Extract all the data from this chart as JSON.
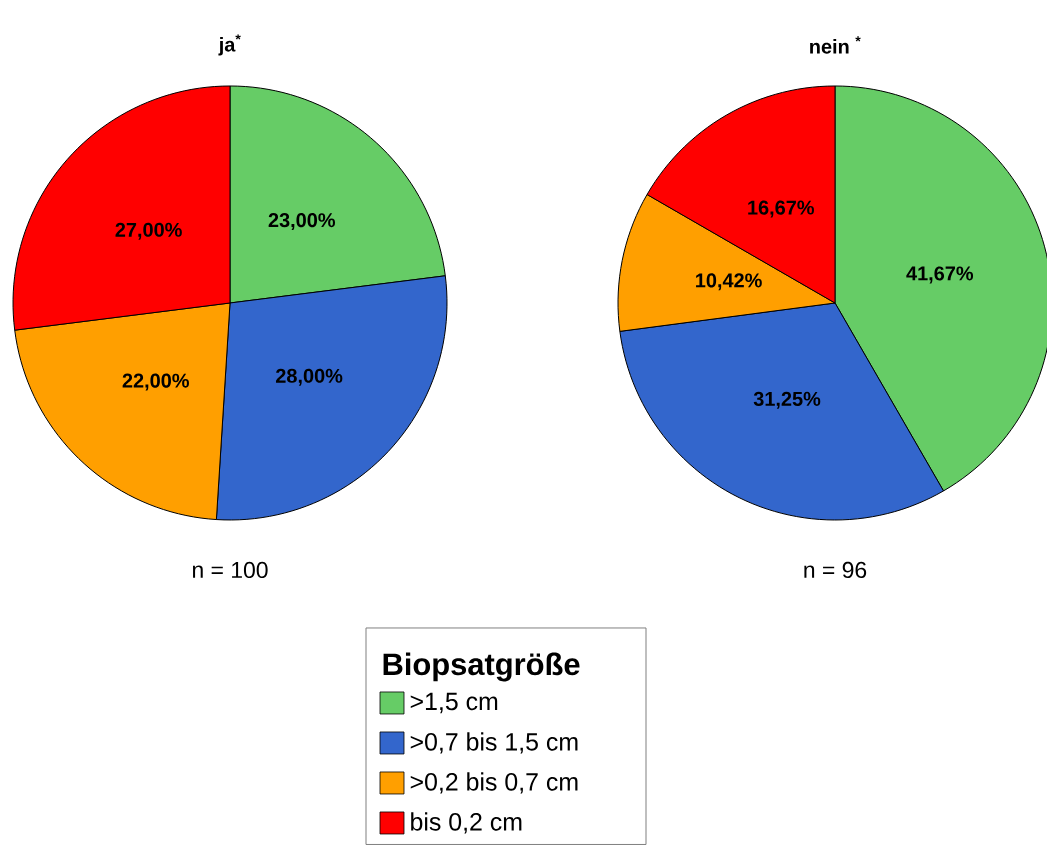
{
  "chart_data": [
    {
      "type": "pie",
      "title": "ja$^{*}$",
      "categories": [
        ">1,5 cm",
        ">0,7 bis 1,5 cm",
        ">0,2 bis 0,7 cm",
        "bis 0,2 cm"
      ],
      "values": [
        23,
        28,
        22,
        27
      ],
      "value_labels": [
        "23,00%",
        "28,00%",
        "22,00%",
        "27,00%"
      ],
      "colors": [
        "#66cc66",
        "#3366cc",
        "#ff9f00",
        "#ff0000"
      ],
      "annotations": [
        "n = 100"
      ],
      "legend": "bottom",
      "legend_title": "Biopsatgröße"
    },
    {
      "type": "pie",
      "title": "nein $^{*}$",
      "categories": [
        null,
        null,
        null,
        null
      ],
      "values": [
        41.67,
        31.25,
        10.42,
        16.67
      ],
      "value_labels": [
        "41,67%",
        "31,25%",
        "10,42%",
        "16,67%"
      ],
      "colors": [
        "#66cc66",
        "#3366cc",
        "#ff9f00",
        "#ff0000"
      ],
      "annotations": [
        "n = 96"
      ]
    }
  ]
}
